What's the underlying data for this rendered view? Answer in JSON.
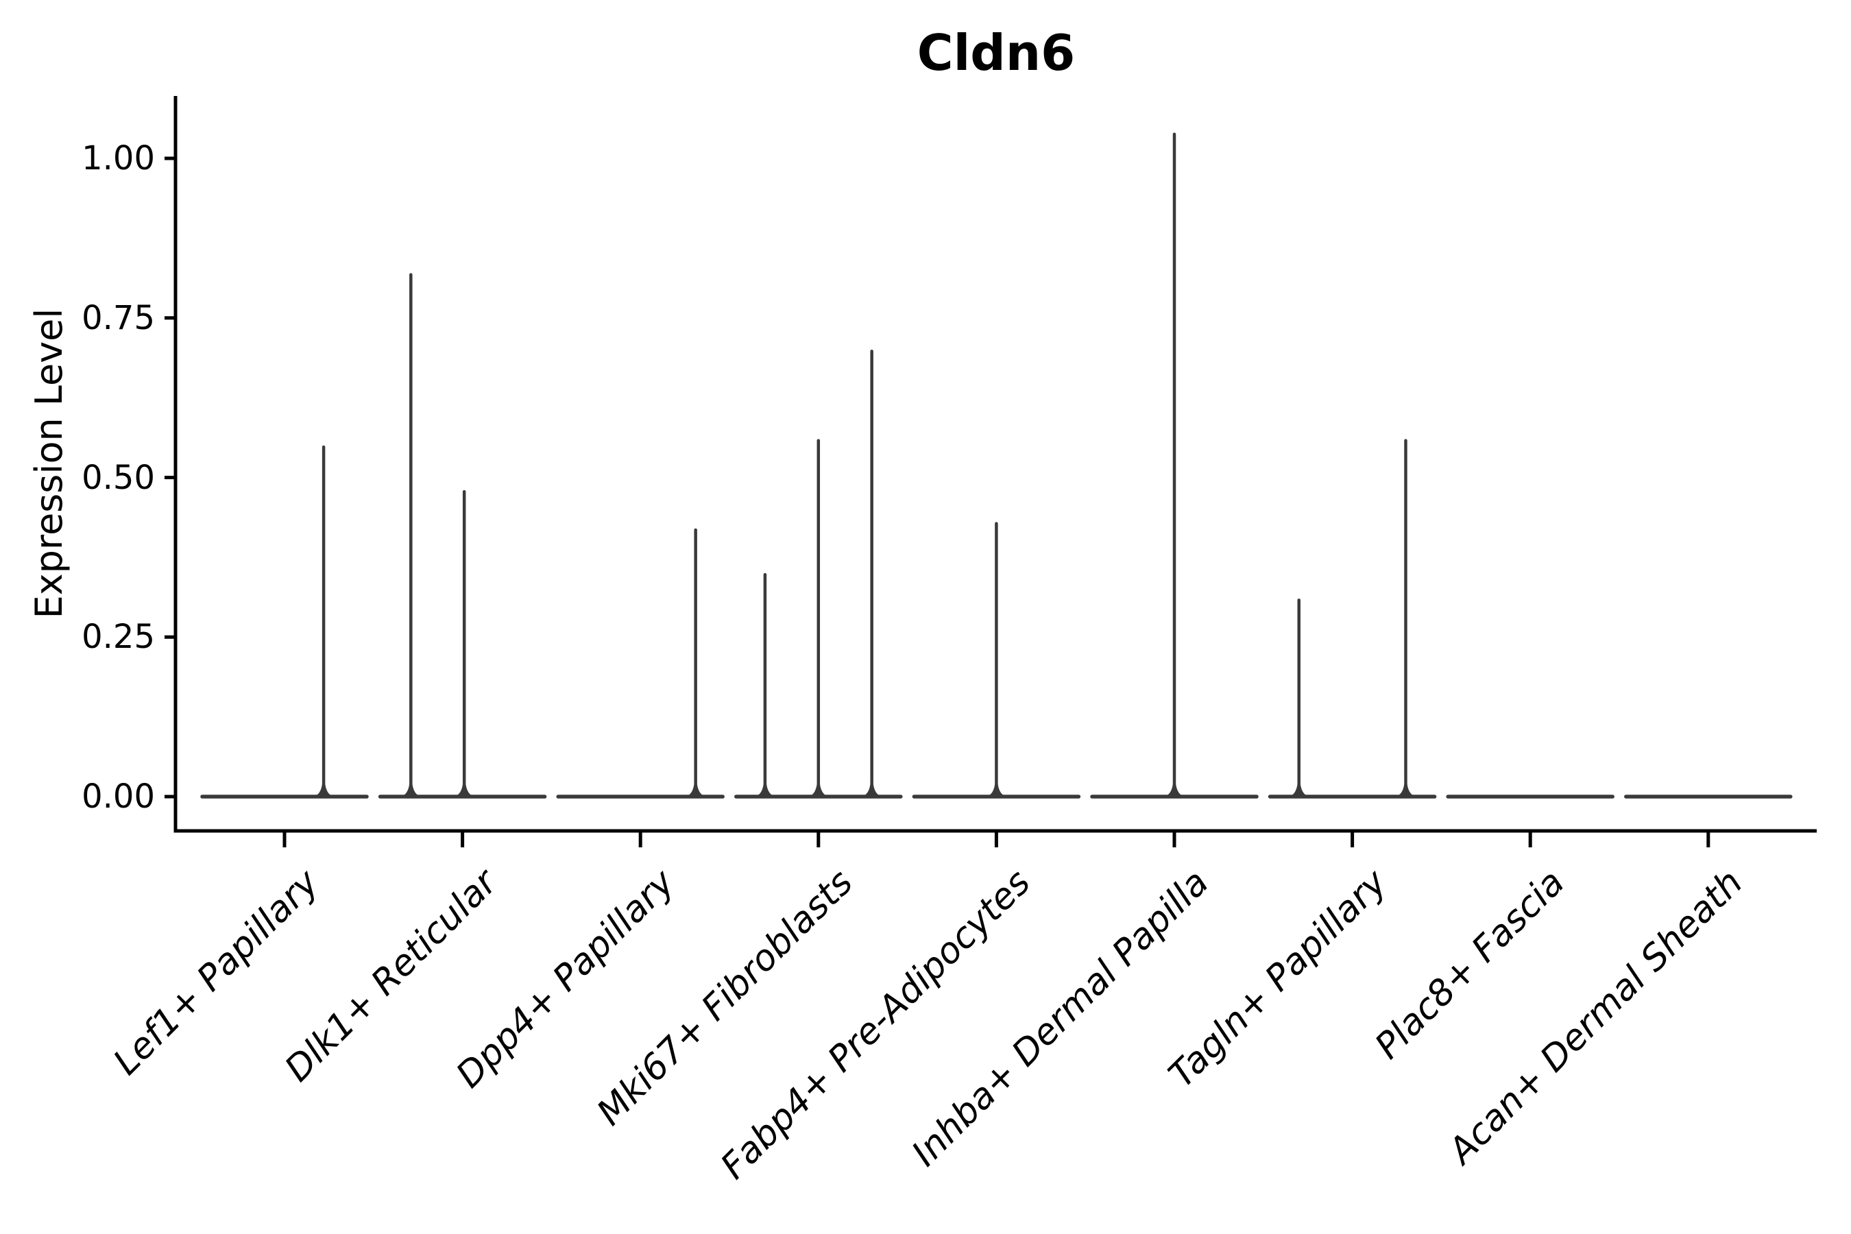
{
  "chart_data": {
    "type": "violin",
    "title": "Cldn6",
    "ylabel": "Expression Level",
    "xlabel": "",
    "grid": false,
    "legend": null,
    "yticks": [
      "0.00",
      "0.25",
      "0.50",
      "0.75",
      "1.00"
    ],
    "ytick_values": [
      0.0,
      0.25,
      0.5,
      0.75,
      1.0
    ],
    "ylim": [
      -0.054,
      1.098
    ],
    "categories": [
      "Lef1+ Papillary",
      "Dlk1+ Reticular",
      "Dpp4+ Papillary",
      "Mki67+ Fibroblasts",
      "Fabp4+ Pre-Adipocytes",
      "Inhba+ Dermal Papilla",
      "Tagln+ Papillary",
      "Plac8+ Fascia",
      "Acan+ Dermal Sheath"
    ],
    "violins": [
      {
        "category": "Lef1+ Papillary",
        "baseline_value": 0.0,
        "spikes": [
          {
            "offset": 0.22,
            "value": 0.55
          }
        ]
      },
      {
        "category": "Dlk1+ Reticular",
        "baseline_value": 0.0,
        "spikes": [
          {
            "offset": -0.29,
            "value": 0.82
          },
          {
            "offset": 0.01,
            "value": 0.48
          }
        ]
      },
      {
        "category": "Dpp4+ Papillary",
        "baseline_value": 0.0,
        "spikes": [
          {
            "offset": 0.31,
            "value": 0.42
          }
        ]
      },
      {
        "category": "Mki67+ Fibroblasts",
        "baseline_value": 0.0,
        "spikes": [
          {
            "offset": -0.3,
            "value": 0.35
          },
          {
            "offset": 0.0,
            "value": 0.56
          },
          {
            "offset": 0.3,
            "value": 0.7
          }
        ]
      },
      {
        "category": "Fabp4+ Pre-Adipocytes",
        "baseline_value": 0.0,
        "spikes": [
          {
            "offset": 0.0,
            "value": 0.43
          }
        ]
      },
      {
        "category": "Inhba+ Dermal Papilla",
        "baseline_value": 0.0,
        "spikes": [
          {
            "offset": 0.0,
            "value": 1.04
          }
        ]
      },
      {
        "category": "Tagln+ Papillary",
        "baseline_value": 0.0,
        "spikes": [
          {
            "offset": -0.3,
            "value": 0.31
          },
          {
            "offset": 0.3,
            "value": 0.56
          }
        ]
      },
      {
        "category": "Plac8+ Fascia",
        "baseline_value": 0.0,
        "spikes": []
      },
      {
        "category": "Acan+ Dermal Sheath",
        "baseline_value": 0.0,
        "spikes": []
      }
    ],
    "style": {
      "background": "#ffffff",
      "axis_color": "#000000",
      "text_color": "#000000",
      "violin_color": "#3A3A3A",
      "title_weight": "bold",
      "xlabel_style": "italic",
      "xlabel_rotation_deg": 45
    }
  }
}
